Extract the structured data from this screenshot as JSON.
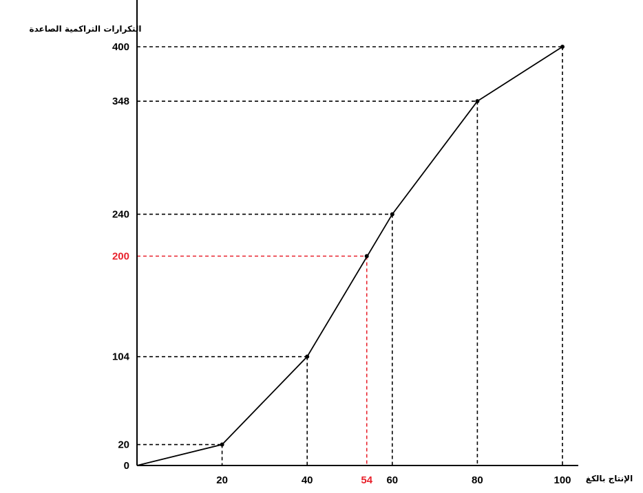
{
  "chart_data": {
    "type": "line",
    "title": "",
    "xlabel": "الإنتاج بالكغ",
    "ylabel": "التكرارات التراكمية الصاعدة",
    "x_ticks": [
      20,
      40,
      60,
      80,
      100
    ],
    "y_ticks": [
      0,
      20,
      104,
      240,
      348,
      400
    ],
    "xlim": [
      0,
      100
    ],
    "ylim": [
      0,
      400
    ],
    "grid": false,
    "series": [
      {
        "name": "",
        "x": [
          0,
          20,
          40,
          60,
          80,
          100
        ],
        "y": [
          0,
          20,
          104,
          240,
          348,
          400
        ]
      }
    ],
    "annotations": [
      {
        "x": 54,
        "y": 200,
        "x_label": "54",
        "y_label": "200",
        "color": "#e8212b"
      }
    ]
  },
  "colors": {
    "line": "#000000",
    "guide": "#000000",
    "highlight": "#e8212b"
  }
}
